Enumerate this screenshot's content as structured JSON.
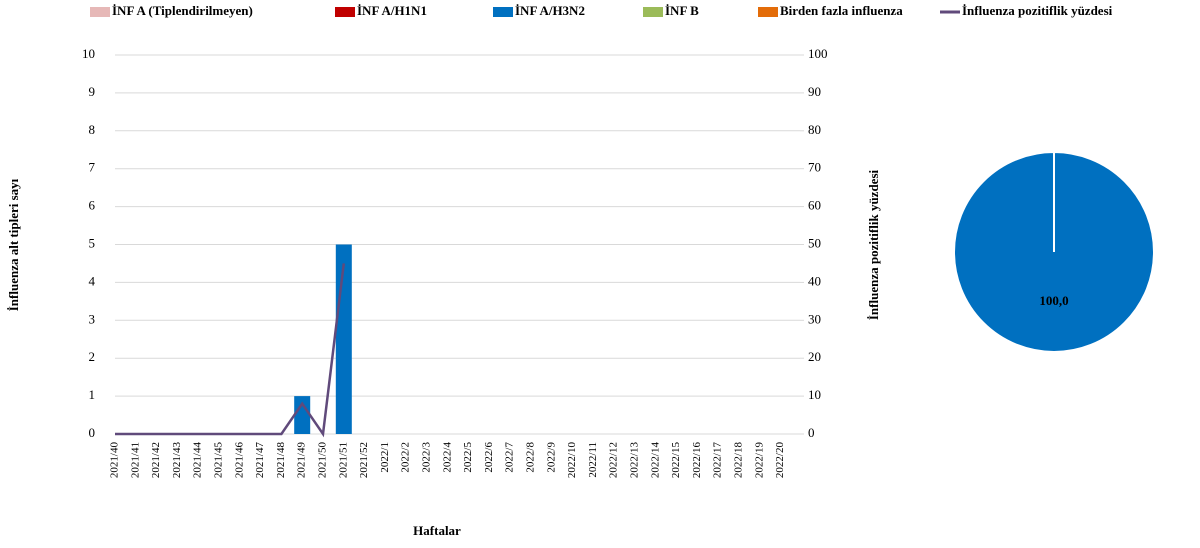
{
  "chart_data": [
    {
      "type": "bar",
      "categories": [
        "2021/40",
        "2021/41",
        "2021/42",
        "2021/43",
        "2021/44",
        "2021/45",
        "2021/46",
        "2021/47",
        "2021/48",
        "2021/49",
        "2021/50",
        "2021/51",
        "2021/52",
        "2022/1",
        "2022/2",
        "2022/3",
        "2022/4",
        "2022/5",
        "2022/6",
        "2022/7",
        "2022/8",
        "2022/9",
        "2022/10",
        "2022/11",
        "2022/12",
        "2022/13",
        "2022/14",
        "2022/15",
        "2022/16",
        "2022/17",
        "2022/18",
        "2022/19",
        "2022/20"
      ],
      "series": [
        {
          "name": "İNF A (Tiplendirilmeyen)",
          "color": "#e6b8b7",
          "values": [
            0,
            0,
            0,
            0,
            0,
            0,
            0,
            0,
            0,
            0,
            0,
            0,
            null,
            null,
            null,
            null,
            null,
            null,
            null,
            null,
            null,
            null,
            null,
            null,
            null,
            null,
            null,
            null,
            null,
            null,
            null,
            null,
            null
          ]
        },
        {
          "name": "İNF A/H1N1",
          "color": "#c00000",
          "values": [
            0,
            0,
            0,
            0,
            0,
            0,
            0,
            0,
            0,
            0,
            0,
            0,
            null,
            null,
            null,
            null,
            null,
            null,
            null,
            null,
            null,
            null,
            null,
            null,
            null,
            null,
            null,
            null,
            null,
            null,
            null,
            null,
            null
          ]
        },
        {
          "name": "İNF A/H3N2",
          "color": "#0070c0",
          "values": [
            0,
            0,
            0,
            0,
            0,
            0,
            0,
            0,
            0,
            1,
            0,
            5,
            null,
            null,
            null,
            null,
            null,
            null,
            null,
            null,
            null,
            null,
            null,
            null,
            null,
            null,
            null,
            null,
            null,
            null,
            null,
            null,
            null
          ]
        },
        {
          "name": "İNF B",
          "color": "#9bbb59",
          "values": [
            0,
            0,
            0,
            0,
            0,
            0,
            0,
            0,
            0,
            0,
            0,
            0,
            null,
            null,
            null,
            null,
            null,
            null,
            null,
            null,
            null,
            null,
            null,
            null,
            null,
            null,
            null,
            null,
            null,
            null,
            null,
            null,
            null
          ]
        },
        {
          "name": "Birden fazla influenza",
          "color": "#e36c09",
          "values": [
            0,
            0,
            0,
            0,
            0,
            0,
            0,
            0,
            0,
            0,
            0,
            0,
            null,
            null,
            null,
            null,
            null,
            null,
            null,
            null,
            null,
            null,
            null,
            null,
            null,
            null,
            null,
            null,
            null,
            null,
            null,
            null,
            null
          ]
        },
        {
          "name": "İnfluenza pozitiflik yüzdesi",
          "color": "#604a7b",
          "type": "line",
          "axis": "y2",
          "values": [
            0,
            0,
            0,
            0,
            0,
            0,
            0,
            0,
            0,
            8,
            0,
            45,
            null,
            null,
            null,
            null,
            null,
            null,
            null,
            null,
            null,
            null,
            null,
            null,
            null,
            null,
            null,
            null,
            null,
            null,
            null,
            null,
            null
          ]
        }
      ],
      "y_label": "İnfluenza alt tipleri sayı",
      "y2_label": "İnfluenza pozitiflik yüzdesi",
      "x_label": "Haftalar",
      "ylim": [
        0,
        10
      ],
      "yticks": [
        0,
        1,
        2,
        3,
        4,
        5,
        6,
        7,
        8,
        9,
        10
      ],
      "y2lim": [
        0,
        100
      ],
      "y2ticks": [
        0,
        10,
        20,
        30,
        40,
        50,
        60,
        70,
        80,
        90,
        100
      ],
      "grid": true
    },
    {
      "type": "pie",
      "values": [
        100
      ],
      "value_labels": [
        "100,0"
      ],
      "colors": [
        "#0070c0"
      ]
    }
  ]
}
